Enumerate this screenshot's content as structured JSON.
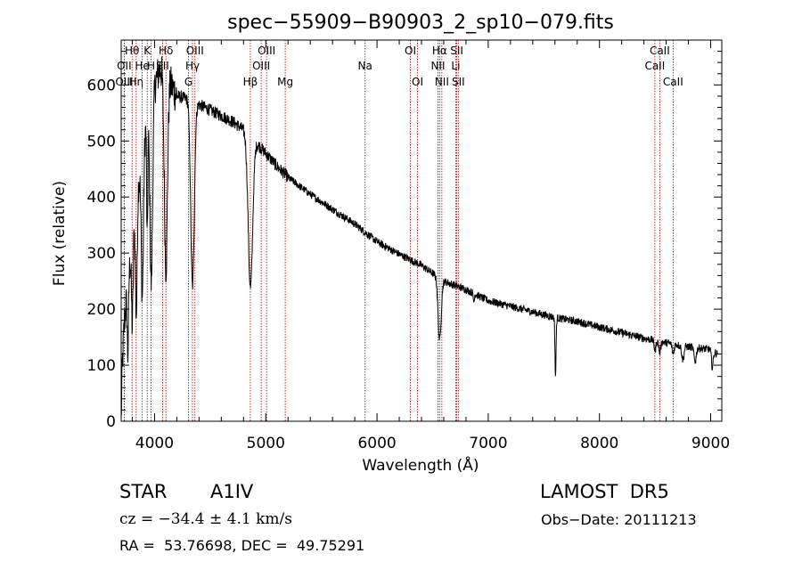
{
  "chart_data": {
    "type": "line",
    "title": "spec−55909−B90903_2_sp10−079.fits",
    "xlabel": "Wavelength (Å)",
    "ylabel": "Flux (relative)",
    "xlim": [
      3700,
      9100
    ],
    "ylim": [
      0,
      680
    ],
    "xticks": [
      4000,
      5000,
      6000,
      7000,
      8000,
      9000
    ],
    "yticks": [
      0,
      100,
      200,
      300,
      400,
      500,
      600
    ],
    "grid": false,
    "series_color": "#000000",
    "line_marker_color": "#aa0000",
    "continuum": [
      [
        3700,
        0
      ],
      [
        3710,
        100
      ],
      [
        3730,
        180
      ],
      [
        3760,
        250
      ],
      [
        3800,
        320
      ],
      [
        3850,
        420
      ],
      [
        3900,
        500
      ],
      [
        3950,
        560
      ],
      [
        4000,
        600
      ],
      [
        4050,
        630
      ],
      [
        4100,
        625
      ],
      [
        4150,
        600
      ],
      [
        4200,
        580
      ],
      [
        4300,
        575
      ],
      [
        4400,
        565
      ],
      [
        4500,
        555
      ],
      [
        4600,
        545
      ],
      [
        4700,
        535
      ],
      [
        4800,
        520
      ],
      [
        4900,
        500
      ],
      [
        5000,
        478
      ],
      [
        5100,
        455
      ],
      [
        5200,
        435
      ],
      [
        5400,
        405
      ],
      [
        5600,
        378
      ],
      [
        5800,
        352
      ],
      [
        6000,
        320
      ],
      [
        6200,
        298
      ],
      [
        6400,
        278
      ],
      [
        6600,
        250
      ],
      [
        6800,
        235
      ],
      [
        7000,
        215
      ],
      [
        7200,
        205
      ],
      [
        7400,
        195
      ],
      [
        7600,
        185
      ],
      [
        7800,
        178
      ],
      [
        8000,
        168
      ],
      [
        8200,
        158
      ],
      [
        8400,
        148
      ],
      [
        8600,
        140
      ],
      [
        8800,
        133
      ],
      [
        9000,
        128
      ],
      [
        9060,
        120
      ]
    ],
    "absorption": [
      {
        "center": 3760,
        "width": 6,
        "depth": 130
      },
      {
        "center": 3800,
        "width": 7,
        "depth": 150
      },
      {
        "center": 3836,
        "width": 8,
        "depth": 200
      },
      {
        "center": 3890,
        "width": 10,
        "depth": 260
      },
      {
        "center": 3934,
        "width": 5,
        "depth": 220
      },
      {
        "center": 3970,
        "width": 12,
        "depth": 330
      },
      {
        "center": 4102,
        "width": 14,
        "depth": 350
      },
      {
        "center": 4341,
        "width": 16,
        "depth": 330
      },
      {
        "center": 4862,
        "width": 20,
        "depth": 270
      },
      {
        "center": 6563,
        "width": 14,
        "depth": 110
      },
      {
        "center": 6870,
        "width": 4,
        "depth": 15
      },
      {
        "center": 7605,
        "width": 5,
        "depth": 105
      },
      {
        "center": 8500,
        "width": 8,
        "depth": 18
      },
      {
        "center": 8542,
        "width": 8,
        "depth": 20
      },
      {
        "center": 8662,
        "width": 8,
        "depth": 18
      },
      {
        "center": 8750,
        "width": 10,
        "depth": 25
      },
      {
        "center": 8860,
        "width": 10,
        "depth": 25
      },
      {
        "center": 9015,
        "width": 8,
        "depth": 30
      }
    ],
    "noise_amplitude": 7,
    "lines": [
      {
        "label": "Hθ",
        "x": 3798,
        "row": 0
      },
      {
        "label": "OII",
        "x": 3727,
        "row": 1
      },
      {
        "label": "OIII",
        "x": 3727,
        "row": 2
      },
      {
        "label": "Hη",
        "x": 3835,
        "row": 2
      },
      {
        "label": "K",
        "x": 3934,
        "row": 0
      },
      {
        "label": "He",
        "x": 3889,
        "row": 1
      },
      {
        "label": "H",
        "x": 3969,
        "row": 1
      },
      {
        "label": "Hδ",
        "x": 4102,
        "row": 0
      },
      {
        "label": "SII",
        "x": 4072,
        "row": 1
      },
      {
        "label": "OIII",
        "x": 4363,
        "row": 0
      },
      {
        "label": "Hγ",
        "x": 4341,
        "row": 1
      },
      {
        "label": "G",
        "x": 4305,
        "row": 2
      },
      {
        "label": "OIII",
        "x": 5007,
        "row": 0
      },
      {
        "label": "OIII",
        "x": 4959,
        "row": 1
      },
      {
        "label": "Hβ",
        "x": 4861,
        "row": 2
      },
      {
        "label": "Mg",
        "x": 5175,
        "row": 2
      },
      {
        "label": "Na",
        "x": 5893,
        "row": 1
      },
      {
        "label": "OI",
        "x": 6300,
        "row": 0
      },
      {
        "label": "OI",
        "x": 6364,
        "row": 2
      },
      {
        "label": "Hα",
        "x": 6563,
        "row": 0
      },
      {
        "label": "NII",
        "x": 6548,
        "row": 1
      },
      {
        "label": "NII",
        "x": 6583,
        "row": 2
      },
      {
        "label": "SII",
        "x": 6717,
        "row": 0
      },
      {
        "label": "Li",
        "x": 6708,
        "row": 1
      },
      {
        "label": "SII",
        "x": 6731,
        "row": 2
      },
      {
        "label": "CaII",
        "x": 8542,
        "row": 0
      },
      {
        "label": "CaII",
        "x": 8498,
        "row": 1
      },
      {
        "label": "CaII",
        "x": 8662,
        "row": 2
      }
    ]
  },
  "info": {
    "object_class": "STAR",
    "subclass": "A1IV",
    "survey": "LAMOST  DR5",
    "cz": "cz = −34.4 ± 4.1 km/s",
    "obs_date": "Obs−Date: 20111213",
    "coords": "RA =  53.76698, DEC =  49.75291"
  }
}
